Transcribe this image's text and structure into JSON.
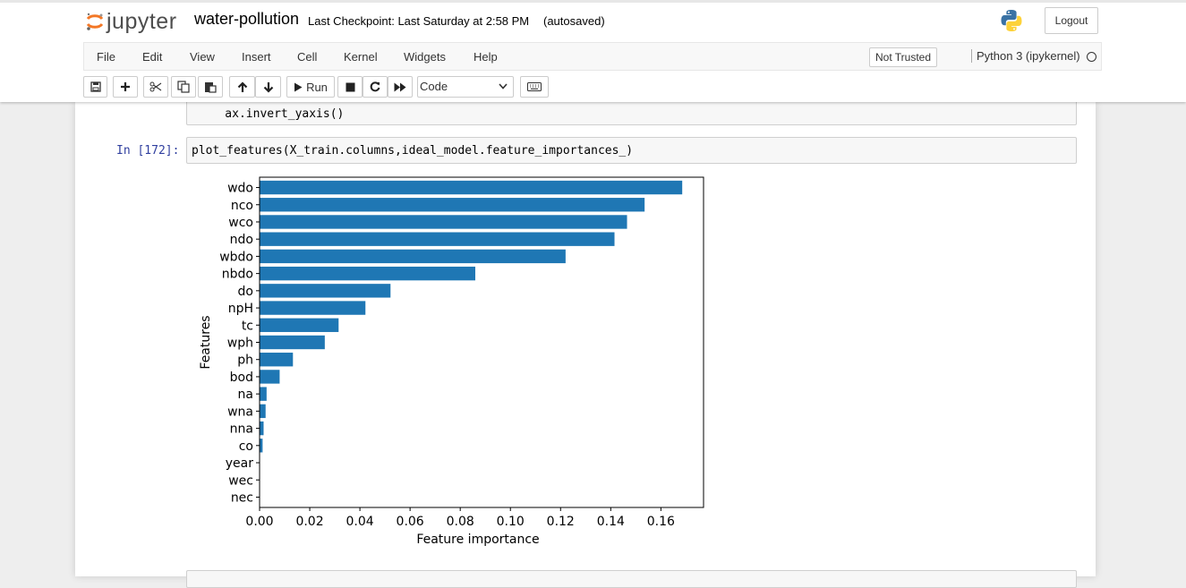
{
  "header": {
    "logo_text": "jupyter",
    "notebook_name": "water-pollution",
    "checkpoint": "Last Checkpoint: Last Saturday at 2:58 PM",
    "autosave_status": "(autosaved)",
    "logout_label": "Logout",
    "python_logo_icon": "python-logo-icon"
  },
  "menubar": {
    "items": [
      "File",
      "Edit",
      "View",
      "Insert",
      "Cell",
      "Kernel",
      "Widgets",
      "Help"
    ],
    "trust_status": "Not Trusted",
    "kernel_name": "Python 3 (ipykernel)",
    "kernel_indicator_icon": "kernel-idle-circle-icon"
  },
  "toolbar": {
    "icons": [
      "save-icon",
      "plus-icon",
      "cut-icon",
      "copy-icon",
      "paste-icon",
      "arrow-up-icon",
      "arrow-down-icon",
      "play-icon",
      "stop-icon",
      "restart-icon",
      "fast-forward-icon",
      "keyboard-icon"
    ],
    "run_label": "Run",
    "cell_type": "Code"
  },
  "cells": {
    "prev_cell_last_line": "    ax.invert_yaxis()",
    "current_prompt": "In [172]:",
    "current_code": "plot_features(X_train.columns,ideal_model.feature_importances_)"
  },
  "chart_data": {
    "type": "bar",
    "orientation": "horizontal",
    "categories": [
      "wdo",
      "nco",
      "wco",
      "ndo",
      "wbdo",
      "nbdo",
      "do",
      "npH",
      "tc",
      "wph",
      "ph",
      "bod",
      "na",
      "wna",
      "nna",
      "co",
      "year",
      "wec",
      "nec"
    ],
    "values": [
      0.1685,
      0.1535,
      0.1465,
      0.1415,
      0.122,
      0.086,
      0.0522,
      0.0422,
      0.0315,
      0.026,
      0.0133,
      0.008,
      0.0028,
      0.0024,
      0.0016,
      0.0012,
      0.0,
      0.0,
      0.0
    ],
    "xlabel": "Feature importance",
    "ylabel": "Features",
    "xlim": [
      0,
      0.177
    ],
    "xticks": [
      0.0,
      0.02,
      0.04,
      0.06,
      0.08,
      0.1,
      0.12,
      0.14,
      0.16
    ],
    "xtick_labels": [
      "0.00",
      "0.02",
      "0.04",
      "0.06",
      "0.08",
      "0.10",
      "0.12",
      "0.14",
      "0.16"
    ],
    "bar_color": "#1f77b4",
    "grid": false,
    "y_inverted": true
  },
  "colors": {
    "prompt_in": "#303f9f",
    "bar": "#1f77b4"
  }
}
